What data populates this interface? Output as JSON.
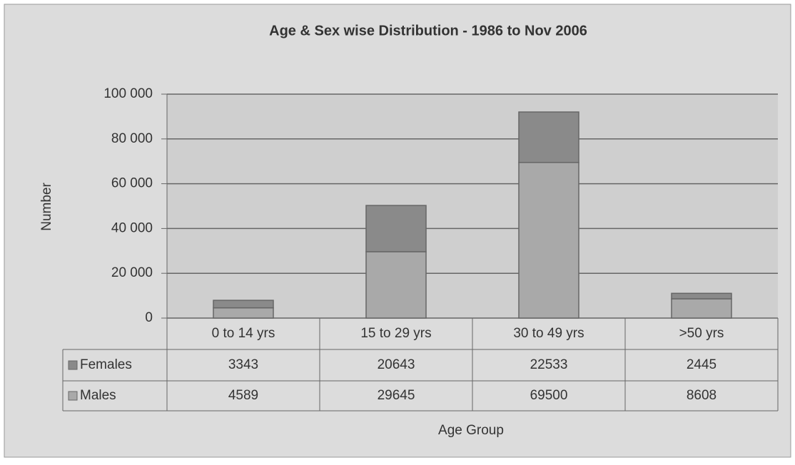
{
  "chart_data": {
    "type": "bar",
    "stacked": true,
    "title": "Age & Sex wise Distribution - 1986 to Nov 2006",
    "y_label": "Number",
    "x_label": "Age Group",
    "categories": [
      "0 to 14 yrs",
      "15 to 29 yrs",
      "30 to 49 yrs",
      ">50 yrs"
    ],
    "series": [
      {
        "name": "Males",
        "color": "#a9a9a9",
        "values": [
          4589,
          29645,
          69500,
          8608
        ]
      },
      {
        "name": "Females",
        "color": "#8a8a8a",
        "values": [
          3343,
          20643,
          22533,
          2445
        ]
      }
    ],
    "ylim": [
      0,
      100000
    ],
    "yticks": [
      0,
      {
        "value": 20000,
        "label": "20 000"
      },
      {
        "value": 40000,
        "label": "40 000"
      },
      {
        "value": 60000,
        "label": "60 000"
      },
      {
        "value": 80000,
        "label": "80 000"
      },
      {
        "value": 100000,
        "label": "100 000"
      }
    ],
    "grid": true
  }
}
